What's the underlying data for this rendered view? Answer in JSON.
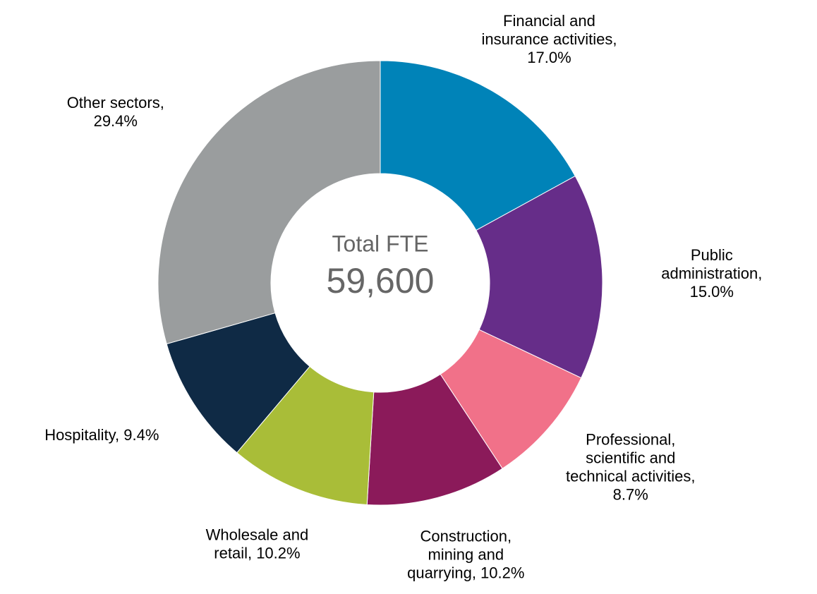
{
  "chart_data": {
    "type": "donut",
    "center_title": "Total FTE",
    "center_value": "59,600",
    "values": [
      17.0,
      15.0,
      8.7,
      10.2,
      10.2,
      9.4,
      29.4
    ],
    "value_labels": [
      "Financial and insurance activities, 17.0%",
      "Public administration, 15.0%",
      "Professional, scientific and technical activities, 8.7%",
      "Construction, mining and quarrying, 10.2%",
      "Wholesale and retail, 10.2%",
      "Hospitality, 9.4%",
      "Other sectors, 29.4%"
    ],
    "colors": [
      "#0083b8",
      "#662d89",
      "#f17189",
      "#8b1a5a",
      "#a9bd38",
      "#0f2a45",
      "#9a9d9e"
    ]
  }
}
